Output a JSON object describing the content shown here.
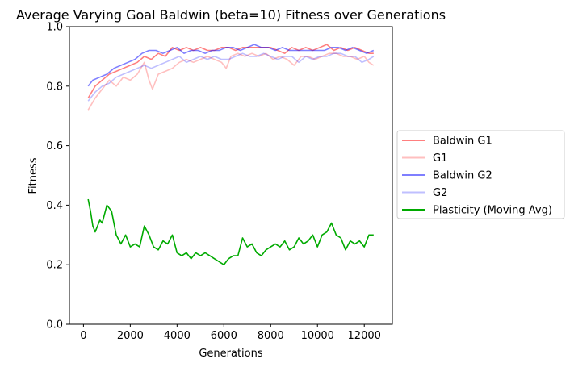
{
  "chart_data": {
    "type": "line",
    "title": "Average Varying Goal Baldwin (beta=10) Fitness over Generations",
    "xlabel": "Generations",
    "ylabel": "Fitness",
    "xlim": [
      -600,
      13200
    ],
    "ylim": [
      0.0,
      1.0
    ],
    "xticks": [
      0,
      2000,
      4000,
      6000,
      8000,
      10000,
      12000
    ],
    "yticks": [
      0.0,
      0.2,
      0.4,
      0.6,
      0.8,
      1.0
    ],
    "grid": false,
    "legend_position": "center-left outside right",
    "series": [
      {
        "name": "Baldwin G1",
        "color": "#ff0000",
        "alpha": 0.5,
        "x": [
          200,
          500,
          800,
          1100,
          1400,
          1700,
          2000,
          2300,
          2600,
          2900,
          3200,
          3500,
          3800,
          4100,
          4400,
          4700,
          5000,
          5300,
          5600,
          5900,
          6200,
          6500,
          6800,
          7100,
          7400,
          7700,
          8000,
          8300,
          8600,
          8900,
          9200,
          9500,
          9800,
          10100,
          10400,
          10700,
          11000,
          11300,
          11600,
          11900,
          12200,
          12400
        ],
        "values": [
          0.76,
          0.8,
          0.82,
          0.84,
          0.85,
          0.86,
          0.87,
          0.88,
          0.9,
          0.89,
          0.91,
          0.9,
          0.93,
          0.92,
          0.93,
          0.92,
          0.93,
          0.92,
          0.92,
          0.93,
          0.93,
          0.92,
          0.93,
          0.93,
          0.93,
          0.93,
          0.93,
          0.92,
          0.91,
          0.93,
          0.92,
          0.93,
          0.92,
          0.93,
          0.94,
          0.92,
          0.93,
          0.92,
          0.93,
          0.92,
          0.91,
          0.91
        ]
      },
      {
        "name": "G1",
        "color": "#ff0000",
        "alpha": 0.25,
        "x": [
          200,
          500,
          800,
          1100,
          1400,
          1700,
          2000,
          2300,
          2600,
          2800,
          2950,
          3200,
          3500,
          3800,
          4100,
          4400,
          4700,
          5000,
          5300,
          5600,
          5900,
          6100,
          6300,
          6600,
          6900,
          7200,
          7500,
          7800,
          8100,
          8400,
          8700,
          9000,
          9300,
          9600,
          9900,
          10200,
          10500,
          10800,
          11100,
          11400,
          11700,
          12000,
          12200,
          12400
        ],
        "values": [
          0.72,
          0.76,
          0.79,
          0.82,
          0.8,
          0.83,
          0.82,
          0.84,
          0.88,
          0.82,
          0.79,
          0.84,
          0.85,
          0.86,
          0.88,
          0.89,
          0.88,
          0.89,
          0.9,
          0.89,
          0.88,
          0.86,
          0.9,
          0.91,
          0.9,
          0.91,
          0.9,
          0.91,
          0.89,
          0.9,
          0.89,
          0.87,
          0.9,
          0.9,
          0.89,
          0.9,
          0.91,
          0.91,
          0.9,
          0.9,
          0.89,
          0.9,
          0.88,
          0.87
        ]
      },
      {
        "name": "Baldwin G2",
        "color": "#0000ff",
        "alpha": 0.5,
        "x": [
          200,
          400,
          700,
          1000,
          1300,
          1600,
          1900,
          2200,
          2500,
          2800,
          3100,
          3400,
          3700,
          4000,
          4300,
          4600,
          4900,
          5200,
          5500,
          5800,
          6100,
          6400,
          6700,
          7000,
          7300,
          7600,
          7900,
          8200,
          8500,
          8800,
          9100,
          9400,
          9700,
          10000,
          10300,
          10600,
          10900,
          11200,
          11500,
          11800,
          12100,
          12400
        ],
        "values": [
          0.8,
          0.82,
          0.83,
          0.84,
          0.86,
          0.87,
          0.88,
          0.89,
          0.91,
          0.92,
          0.92,
          0.91,
          0.92,
          0.93,
          0.91,
          0.92,
          0.92,
          0.91,
          0.92,
          0.92,
          0.93,
          0.93,
          0.92,
          0.93,
          0.94,
          0.93,
          0.93,
          0.92,
          0.93,
          0.92,
          0.92,
          0.92,
          0.92,
          0.92,
          0.92,
          0.93,
          0.93,
          0.92,
          0.93,
          0.92,
          0.91,
          0.92
        ]
      },
      {
        "name": "G2",
        "color": "#0000ff",
        "alpha": 0.25,
        "x": [
          200,
          500,
          800,
          1100,
          1400,
          1700,
          2000,
          2300,
          2600,
          2900,
          3200,
          3500,
          3800,
          4100,
          4400,
          4700,
          5000,
          5300,
          5600,
          5900,
          6200,
          6500,
          6800,
          7100,
          7400,
          7700,
          8000,
          8300,
          8600,
          8900,
          9200,
          9500,
          9800,
          10100,
          10400,
          10700,
          11000,
          11300,
          11600,
          11900,
          12200,
          12400
        ],
        "values": [
          0.75,
          0.78,
          0.8,
          0.81,
          0.83,
          0.84,
          0.85,
          0.86,
          0.87,
          0.86,
          0.87,
          0.88,
          0.89,
          0.9,
          0.88,
          0.89,
          0.9,
          0.89,
          0.9,
          0.89,
          0.89,
          0.9,
          0.91,
          0.9,
          0.9,
          0.91,
          0.9,
          0.89,
          0.9,
          0.9,
          0.88,
          0.9,
          0.89,
          0.9,
          0.9,
          0.91,
          0.91,
          0.9,
          0.9,
          0.88,
          0.89,
          0.9
        ]
      },
      {
        "name": "Plasticity (Moving Avg)",
        "color": "#00aa00",
        "alpha": 1.0,
        "x": [
          200,
          300,
          400,
          500,
          700,
          800,
          1000,
          1200,
          1400,
          1600,
          1800,
          2000,
          2200,
          2400,
          2600,
          2800,
          3000,
          3200,
          3400,
          3600,
          3800,
          4000,
          4200,
          4400,
          4600,
          4800,
          5000,
          5200,
          5400,
          5600,
          5800,
          6000,
          6200,
          6400,
          6600,
          6800,
          7000,
          7200,
          7400,
          7600,
          7800,
          8000,
          8200,
          8400,
          8600,
          8800,
          9000,
          9200,
          9400,
          9600,
          9800,
          10000,
          10200,
          10400,
          10600,
          10800,
          11000,
          11200,
          11400,
          11600,
          11800,
          12000,
          12200,
          12400
        ],
        "values": [
          0.42,
          0.38,
          0.33,
          0.31,
          0.35,
          0.34,
          0.4,
          0.38,
          0.3,
          0.27,
          0.3,
          0.26,
          0.27,
          0.26,
          0.33,
          0.3,
          0.26,
          0.25,
          0.28,
          0.27,
          0.3,
          0.24,
          0.23,
          0.24,
          0.22,
          0.24,
          0.23,
          0.24,
          0.23,
          0.22,
          0.21,
          0.2,
          0.22,
          0.23,
          0.23,
          0.29,
          0.26,
          0.27,
          0.24,
          0.23,
          0.25,
          0.26,
          0.27,
          0.26,
          0.28,
          0.25,
          0.26,
          0.29,
          0.27,
          0.28,
          0.3,
          0.26,
          0.3,
          0.31,
          0.34,
          0.3,
          0.29,
          0.25,
          0.28,
          0.27,
          0.28,
          0.26,
          0.3,
          0.3
        ]
      }
    ]
  }
}
